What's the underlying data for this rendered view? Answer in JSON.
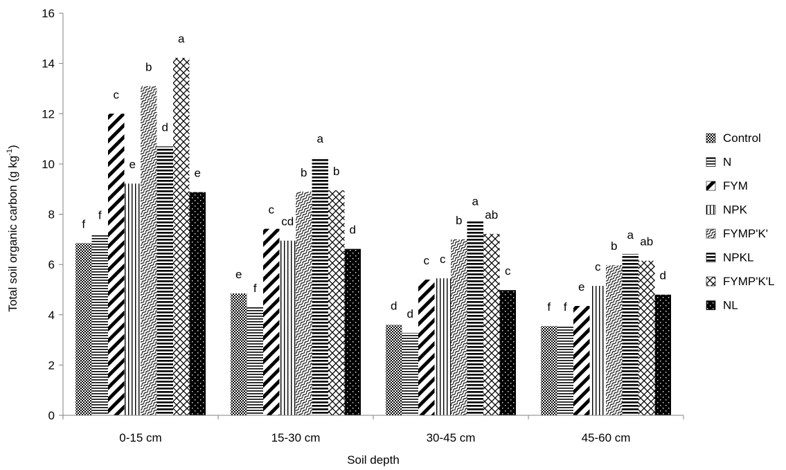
{
  "chart_data": {
    "type": "bar",
    "title": "",
    "xlabel": "Soil depth",
    "ylabel": "Total soil organic carbon (g kg-1)",
    "ylabel_main": "Total soil organic carbon (g kg",
    "ylabel_sup": "-1",
    "ylabel_end": ")",
    "ylim": [
      0,
      16
    ],
    "yticks": [
      0,
      2,
      4,
      6,
      8,
      10,
      12,
      14,
      16
    ],
    "ytick_labels": [
      "0",
      "2",
      "4",
      "6",
      "8",
      "10",
      "12",
      "14",
      "16"
    ],
    "grid": false,
    "legend_position": "right",
    "categories": [
      "0-15 cm",
      "15-30 cm",
      "30-45 cm",
      "45-60 cm"
    ],
    "series": [
      {
        "name": "Control",
        "pattern": "crosshatch",
        "values": [
          6.85,
          4.85,
          3.6,
          3.55
        ],
        "labels": [
          "f",
          "e",
          "d",
          "f"
        ]
      },
      {
        "name": "N",
        "pattern": "horizontal",
        "values": [
          7.2,
          4.3,
          3.28,
          3.55
        ],
        "labels": [
          "f",
          "f",
          "d",
          "f"
        ]
      },
      {
        "name": "FYM",
        "pattern": "diagonal-wide",
        "values": [
          12.0,
          7.42,
          5.4,
          4.35
        ],
        "labels": [
          "c",
          "c",
          "c",
          "e"
        ]
      },
      {
        "name": "NPK",
        "pattern": "vertical",
        "values": [
          9.22,
          6.95,
          5.45,
          5.15
        ],
        "labels": [
          "e",
          "cd",
          "c",
          "c"
        ]
      },
      {
        "name": "FYMP'K'",
        "pattern": "wave",
        "values": [
          13.1,
          8.9,
          7.0,
          5.97
        ],
        "labels": [
          "b",
          "b",
          "b",
          "b"
        ]
      },
      {
        "name": "NPKL",
        "pattern": "horizontal-thick",
        "values": [
          10.7,
          10.25,
          7.75,
          6.42
        ],
        "labels": [
          "d",
          "a",
          "a",
          "a"
        ]
      },
      {
        "name": "FYMP'K'L",
        "pattern": "diamond",
        "values": [
          14.22,
          8.95,
          7.22,
          6.15
        ],
        "labels": [
          "a",
          "b",
          "ab",
          "ab"
        ]
      },
      {
        "name": "NL",
        "pattern": "dotted-black",
        "values": [
          8.88,
          6.62,
          4.98,
          4.8
        ],
        "labels": [
          "e",
          "d",
          "c",
          "d"
        ]
      }
    ]
  }
}
